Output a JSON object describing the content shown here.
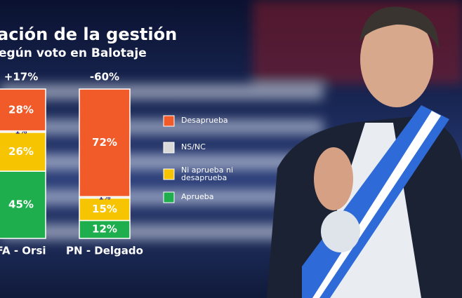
{
  "chart_data": {
    "type": "stacked-bar",
    "title": "ación de la gestión",
    "subtitle": "egún voto en Balotaje",
    "categories": [
      "FA - Orsi",
      "PN - Delgado"
    ],
    "annotations": [
      "+17%",
      "-60%"
    ],
    "series": [
      {
        "name": "Aprueba",
        "color": "#1fae4e",
        "values": [
          45,
          12
        ],
        "value_labels": [
          "45%",
          "12%"
        ]
      },
      {
        "name": "Ni aprueba ni desaprueba",
        "color": "#f6c400",
        "values": [
          26,
          15
        ],
        "value_labels": [
          "26%",
          "15%"
        ]
      },
      {
        "name": "NS/NC",
        "color": "#d9d9d9",
        "values": [
          1,
          1
        ],
        "value_labels": [
          "1%",
          "1%"
        ]
      },
      {
        "name": "Desaprueba",
        "color": "#f15a29",
        "values": [
          28,
          72
        ],
        "value_labels": [
          "28%",
          "72%"
        ]
      }
    ]
  }
}
